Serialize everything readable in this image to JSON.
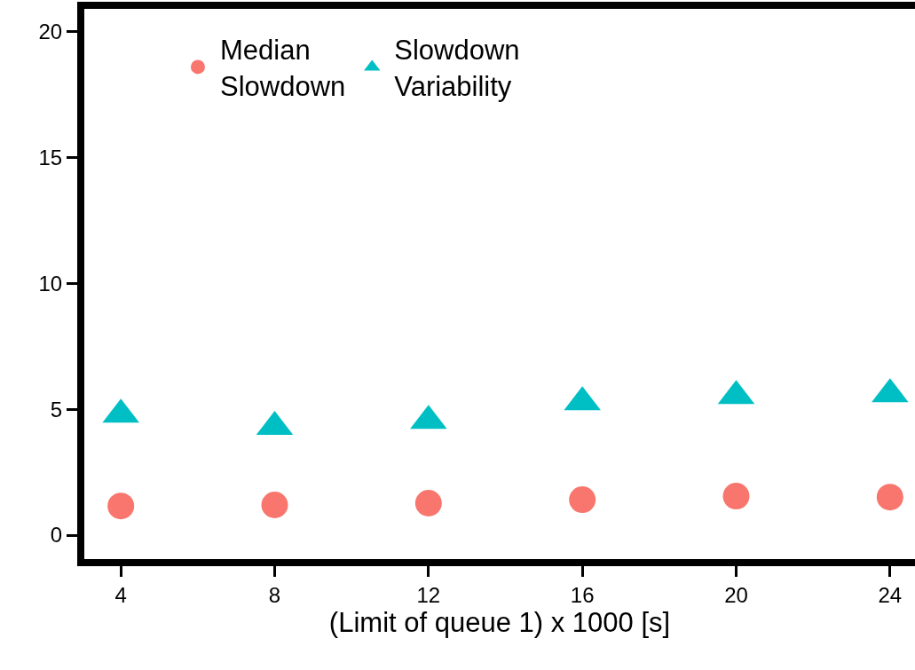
{
  "chart_data": {
    "type": "scatter",
    "xlabel": "(Limit of queue 1) x 1000 [s]",
    "x": [
      4,
      8,
      12,
      16,
      20,
      24
    ],
    "series": [
      {
        "name": "Median\nSlowdown",
        "color": "#f8766d",
        "marker": "circle",
        "values": [
          1.16,
          1.2,
          1.27,
          1.41,
          1.55,
          1.51
        ]
      },
      {
        "name": "Slowdown\nVariability",
        "color": "#00bfc4",
        "marker": "triangle",
        "values": [
          4.79,
          4.3,
          4.54,
          5.28,
          5.53,
          5.6
        ]
      }
    ],
    "xlim": [
      3.05,
      24.65
    ],
    "xticks": [
      4,
      8,
      12,
      16,
      20,
      24
    ],
    "ylim": [
      -0.95,
      20.9
    ],
    "yticks": [
      0,
      5,
      10,
      15,
      20
    ],
    "grid": false,
    "legend": "top left"
  }
}
